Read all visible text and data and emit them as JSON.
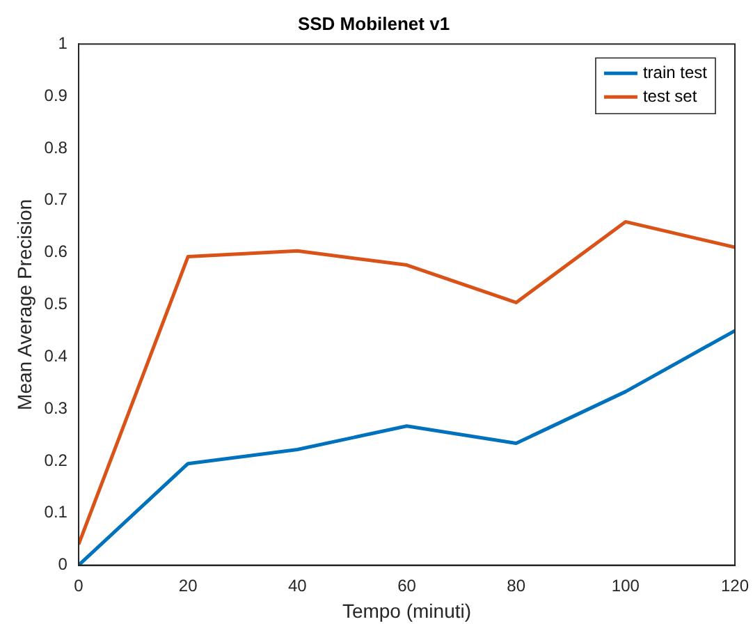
{
  "chart_data": {
    "type": "line",
    "title": "SSD Mobilenet v1",
    "xlabel": "Tempo (minuti)",
    "ylabel": "Mean Average Precision",
    "x": [
      0,
      20,
      40,
      60,
      80,
      100,
      120
    ],
    "series": [
      {
        "name": "train test",
        "color": "#0072bd",
        "values": [
          0,
          0.195,
          0.222,
          0.267,
          0.234,
          0.333,
          0.45
        ]
      },
      {
        "name": "test set",
        "color": "#d95319",
        "values": [
          0.04,
          0.592,
          0.603,
          0.576,
          0.504,
          0.659,
          0.61
        ]
      }
    ],
    "xlim": [
      0,
      120
    ],
    "xticks": [
      0,
      20,
      40,
      60,
      80,
      100,
      120
    ],
    "ylim": [
      0,
      1
    ],
    "yticks": [
      0,
      0.1,
      0.2,
      0.3,
      0.4,
      0.5,
      0.6,
      0.7,
      0.8,
      0.9,
      1
    ],
    "grid": false,
    "legend": "top right",
    "marker": "none",
    "line_style": "solid"
  }
}
